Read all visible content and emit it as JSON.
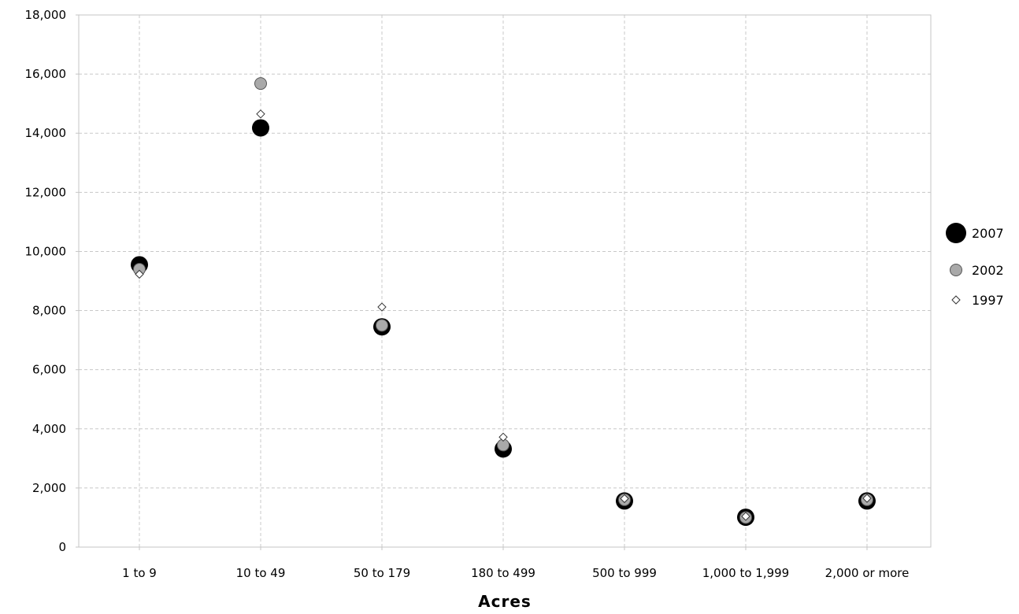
{
  "chart_data": {
    "type": "scatter",
    "title": "",
    "xlabel": "Acres",
    "ylabel": "",
    "categories": [
      "1  to 9",
      "10 to 49",
      "50 to 179",
      "180 to 499",
      "500 to 999",
      "1,000 to 1,999",
      "2,000 or more"
    ],
    "ylim": [
      0,
      18000
    ],
    "yticks": [
      0,
      2000,
      4000,
      6000,
      8000,
      10000,
      12000,
      14000,
      16000,
      18000
    ],
    "ytick_labels": [
      "0",
      "2,000",
      "4,000",
      "6,000",
      "8,000",
      "10,000",
      "12,000",
      "14,000",
      "16,000",
      "18,000"
    ],
    "grid": true,
    "legend_position": "right",
    "series": [
      {
        "name": "2007",
        "marker": "large-circle",
        "color": "#000000",
        "values": [
          9550,
          14180,
          7450,
          3320,
          1560,
          1010,
          1560
        ]
      },
      {
        "name": "2002",
        "marker": "circle",
        "color": "#a9a9a9",
        "values": [
          9400,
          15680,
          7500,
          3450,
          1600,
          1000,
          1600
        ]
      },
      {
        "name": "1997",
        "marker": "diamond",
        "color": "#ffffff",
        "values": [
          9230,
          14650,
          8120,
          3720,
          1640,
          1040,
          1650
        ]
      }
    ]
  }
}
